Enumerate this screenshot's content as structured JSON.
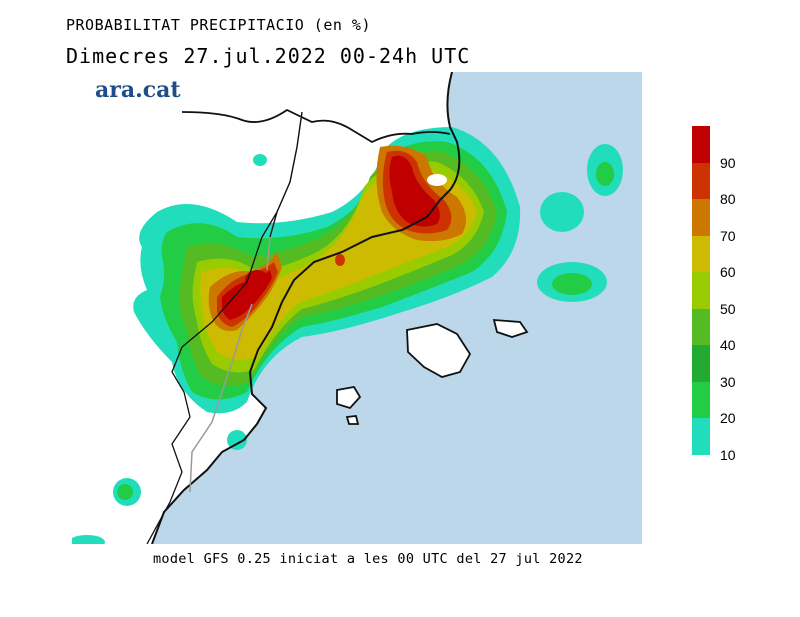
{
  "title": "PROBABILITAT PRECIPITACIO (en %)",
  "subtitle": "Dimecres  27.jul.2022 00-24h UTC",
  "logo": "ara.cat",
  "footer": "model GFS 0.25 iniciat a les 00 UTC del 27 jul 2022",
  "colors": {
    "sea": "#bcd7ea",
    "land": "#ffffff",
    "coast": "#111111",
    "border": "#9a9a9a"
  },
  "legend": {
    "steps": [
      {
        "label": "90",
        "color": "#c00000"
      },
      {
        "label": "80",
        "color": "#cc3300"
      },
      {
        "label": "70",
        "color": "#cc7700"
      },
      {
        "label": "60",
        "color": "#ccbb00"
      },
      {
        "label": "50",
        "color": "#99cc00"
      },
      {
        "label": "40",
        "color": "#55bb22"
      },
      {
        "label": "30",
        "color": "#22aa33"
      },
      {
        "label": "20",
        "color": "#22cc44"
      },
      {
        "label": "10",
        "color": "#22ddbb"
      }
    ]
  }
}
